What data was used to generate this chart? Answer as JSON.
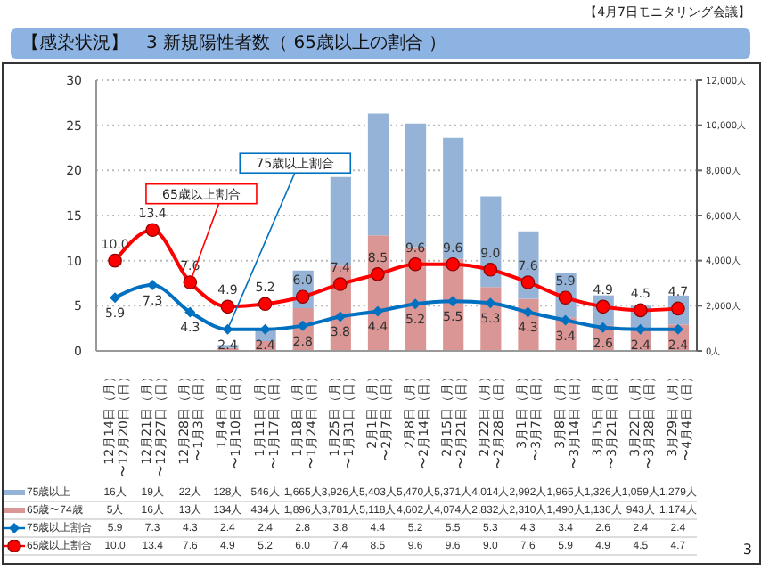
{
  "chart_data": {
    "type": "bar",
    "title": "【感染状況】　3 新規陽性者数（ 65歳以上の割合 ）",
    "annotations": [
      "【4月7日モニタリング会議】",
      "3"
    ],
    "categories": [
      "12月14日（月）〜12月20日（日）",
      "12月21日（月）〜12月27日（日）",
      "12月28日（月）〜1月3日（日）",
      "1月4日（月）〜1月10日（日）",
      "1月11日（月）〜1月17日（日）",
      "1月18日（月）〜1月24日（日）",
      "1月25日（月）〜1月31日（日）",
      "2月1日（月）〜2月7日（日）",
      "2月8日（月）〜2月14日（日）",
      "2月15日（月）〜2月21日（日）",
      "2月22日（月）〜2月28日（日）",
      "3月1日（月）〜3月7日（日）",
      "3月8日（月）〜3月14日（日）",
      "3月15日（月）〜3月21日（日）",
      "3月22日（月）〜3月28日（日）",
      "3月29日（月）〜4月4日（日）"
    ],
    "stacked": true,
    "series": [
      {
        "name": "65歳〜74歳",
        "axis": "y2",
        "color": "#da9694",
        "values": [
          5,
          16,
          13,
          134,
          434,
          1896,
          3781,
          5118,
          4602,
          4074,
          2832,
          2310,
          1490,
          1136,
          943,
          1174
        ],
        "value_labels": [
          "5人",
          "16人",
          "13人",
          "134人",
          "434人",
          "1,896人",
          "3,781人",
          "5,118人",
          "4,602人",
          "4,074人",
          "2,832人",
          "2,310人",
          "1,490人",
          "1,136人",
          "943人",
          "1,174人"
        ]
      },
      {
        "name": "75歳以上",
        "axis": "y2",
        "color": "#95b3d7",
        "values": [
          16,
          19,
          22,
          128,
          546,
          1665,
          3926,
          5403,
          5470,
          5371,
          4014,
          2992,
          1965,
          1326,
          1059,
          1279
        ],
        "value_labels": [
          "16人",
          "19人",
          "22人",
          "128人",
          "546人",
          "1,665人",
          "3,926人",
          "5,403人",
          "5,470人",
          "5,371人",
          "4,014人",
          "2,992人",
          "1,965人",
          "1,326人",
          "1,059人",
          "1,279人"
        ]
      },
      {
        "name": "65歳以上割合",
        "type": "line",
        "color": "#ff0000",
        "marker": "circle",
        "values": [
          10.0,
          13.4,
          7.6,
          4.9,
          5.2,
          6.0,
          7.4,
          8.5,
          9.6,
          9.6,
          9.0,
          7.6,
          5.9,
          4.9,
          4.5,
          4.7
        ],
        "value_labels": [
          "10.0",
          "13.4",
          "7.6",
          "4.9",
          "5.2",
          "6.0",
          "7.4",
          "8.5",
          "9.6",
          "9.6",
          "9.0",
          "7.6",
          "5.9",
          "4.9",
          "4.5",
          "4.7"
        ]
      },
      {
        "name": "75歳以上割合",
        "type": "line",
        "color": "#0070c0",
        "marker": "diamond",
        "values": [
          5.9,
          7.3,
          4.3,
          2.4,
          2.4,
          2.8,
          3.8,
          4.4,
          5.2,
          5.5,
          5.3,
          4.3,
          3.4,
          2.6,
          2.4,
          2.4
        ],
        "value_labels": [
          "5.9",
          "7.3",
          "4.3",
          "2.4",
          "2.4",
          "2.8",
          "3.8",
          "4.4",
          "5.2",
          "5.5",
          "5.3",
          "4.3",
          "3.4",
          "2.6",
          "2.4",
          "2.4"
        ]
      }
    ],
    "ylim": [
      0,
      30
    ],
    "yticks": [
      0,
      5,
      10,
      15,
      20,
      25,
      30
    ],
    "y2lim": [
      0,
      12000
    ],
    "y2ticks": [
      {
        "value": 0,
        "label": "0人"
      },
      {
        "value": 2000,
        "label": "2,000人"
      },
      {
        "value": 4000,
        "label": "4,000人"
      },
      {
        "value": 6000,
        "label": "6,000人"
      },
      {
        "value": 8000,
        "label": "8,000人"
      },
      {
        "value": 10000,
        "label": "10,000人"
      },
      {
        "value": 12000,
        "label": "12,000人"
      }
    ],
    "grid": "y",
    "legend": "bottom"
  }
}
